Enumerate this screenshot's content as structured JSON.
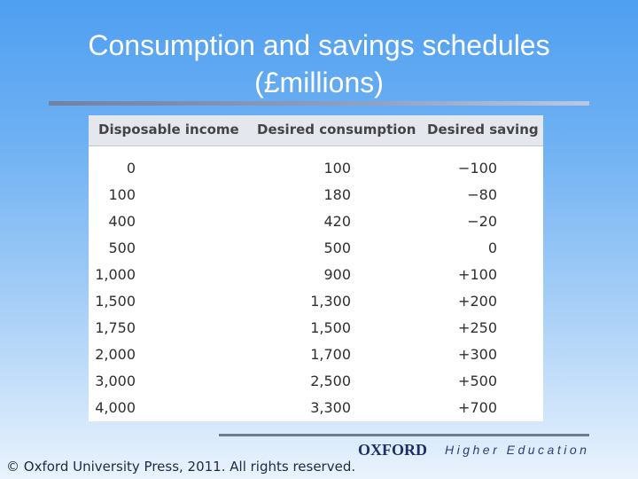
{
  "slide": {
    "title_line1": "Consumption and savings schedules",
    "title_line2": "(£millions)"
  },
  "table": {
    "headers": [
      "Disposable income",
      "Desired consumption",
      "Desired saving"
    ],
    "rows": [
      [
        "0",
        "100",
        "−100"
      ],
      [
        "100",
        "180",
        "−80"
      ],
      [
        "400",
        "420",
        "−20"
      ],
      [
        "500",
        "500",
        "0"
      ],
      [
        "1,000",
        "900",
        "+100"
      ],
      [
        "1,500",
        "1,300",
        "+200"
      ],
      [
        "1,750",
        "1,500",
        "+250"
      ],
      [
        "2,000",
        "1,700",
        "+300"
      ],
      [
        "3,000",
        "2,500",
        "+500"
      ],
      [
        "4,000",
        "3,300",
        "+700"
      ]
    ]
  },
  "footer": {
    "publisher_logo": "OXFORD",
    "tagline": "Higher Education",
    "copyright": "© Oxford University Press, 2011. All rights reserved."
  }
}
